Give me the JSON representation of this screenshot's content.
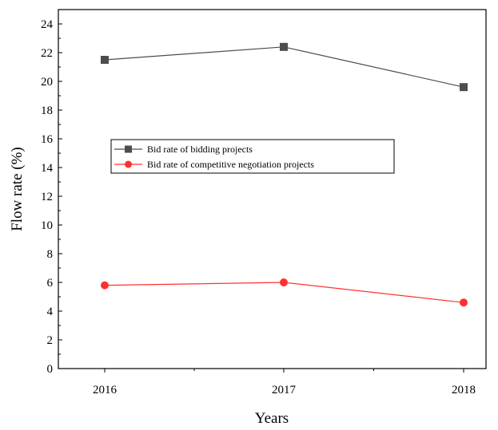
{
  "chart_data": {
    "type": "line",
    "title": "",
    "xlabel": "Years",
    "ylabel": "Flow rate (%)",
    "categories": [
      "2016",
      "2017",
      "2018"
    ],
    "ylim": [
      0,
      25
    ],
    "yticks": [
      "0",
      "2",
      "4",
      "6",
      "8",
      "10",
      "12",
      "14",
      "16",
      "18",
      "20",
      "22",
      "24"
    ],
    "grid": false,
    "legend_position": "center-left",
    "series": [
      {
        "name": "Bid rate of bidding projects",
        "values": [
          21.5,
          22.4,
          19.6
        ],
        "color": "#4d4d4d",
        "marker": "square"
      },
      {
        "name": "Bid rate of competitive negotiation projects",
        "values": [
          5.8,
          6.0,
          4.6
        ],
        "color": "#ff3030",
        "marker": "circle"
      }
    ]
  }
}
